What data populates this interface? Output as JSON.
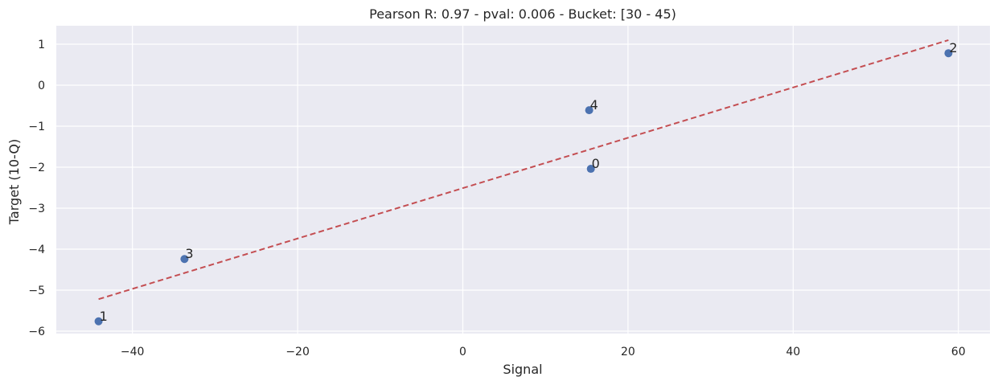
{
  "chart_data": {
    "type": "scatter",
    "title": "Pearson R: 0.97 - pval: 0.006 - Bucket: [30 - 45)",
    "xlabel": "Signal",
    "ylabel": "Target (10-Q)",
    "xlim": [
      -50,
      64
    ],
    "ylim": [
      -6.1,
      1.45
    ],
    "xticks": [
      -40,
      -20,
      0,
      20,
      40,
      60
    ],
    "xtick_labels": [
      "−40",
      "−20",
      "0",
      "20",
      "40",
      "60"
    ],
    "yticks": [
      1,
      0,
      -1,
      -2,
      -3,
      -4,
      -5,
      -6
    ],
    "ytick_labels": [
      "1",
      "0",
      "−1",
      "−2",
      "−3",
      "−4",
      "−5",
      "−6"
    ],
    "grid": true,
    "legend": null,
    "points": [
      {
        "label": "0",
        "x": 15.5,
        "y": -2.04
      },
      {
        "label": "1",
        "x": -44.1,
        "y": -5.76
      },
      {
        "label": "2",
        "x": 58.8,
        "y": 0.78
      },
      {
        "label": "3",
        "x": -33.7,
        "y": -4.24
      },
      {
        "label": "4",
        "x": 15.3,
        "y": -0.61
      }
    ],
    "fit_line": {
      "style": "dashed",
      "x": [
        -44.1,
        58.8
      ],
      "y": [
        -5.22,
        1.1
      ]
    },
    "colors": {
      "points": "#4c72b0",
      "fit_line": "#c44e52",
      "background": "#eaeaf2",
      "grid": "#ffffff"
    }
  }
}
